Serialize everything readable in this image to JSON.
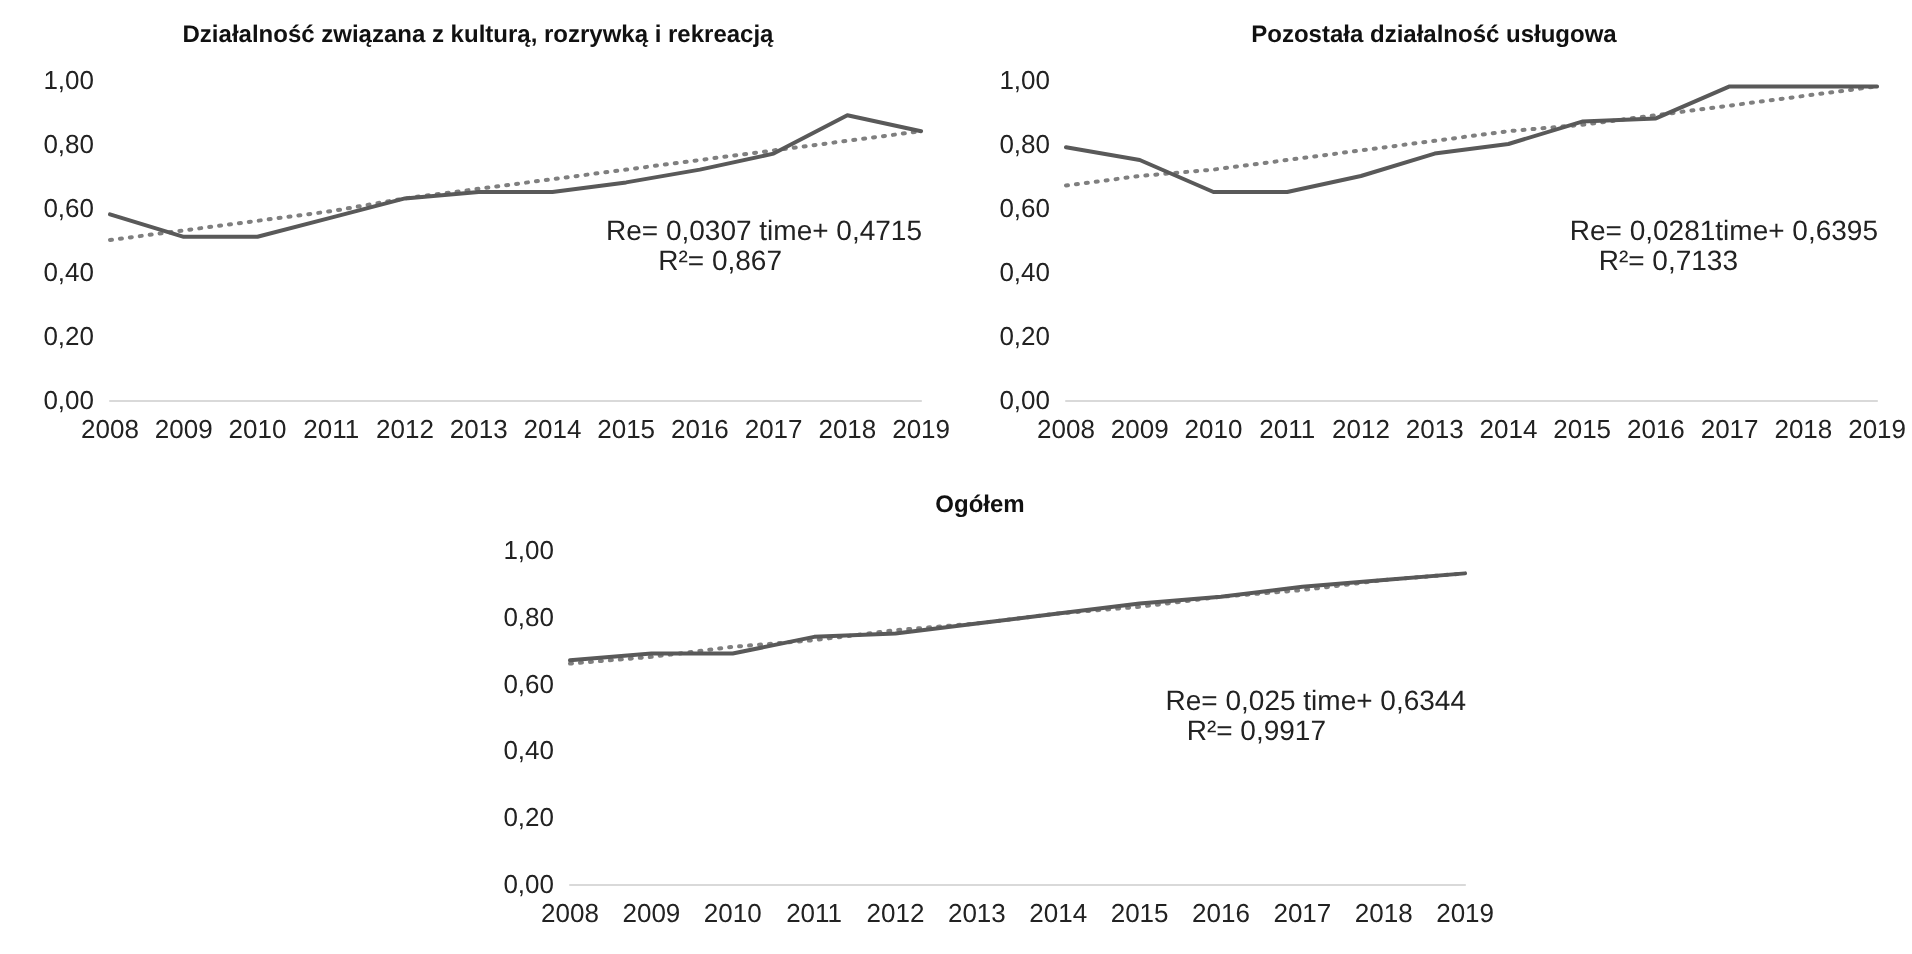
{
  "chart_data": [
    {
      "type": "line",
      "title": "Działalność związana z kulturą, rozrywką i rekreacją",
      "categories": [
        "2008",
        "2009",
        "2010",
        "2011",
        "2012",
        "2013",
        "2014",
        "2015",
        "2016",
        "2017",
        "2018",
        "2019"
      ],
      "series": [
        {
          "color": "#595959",
          "line_style": "solid",
          "values": [
            0.58,
            0.51,
            0.51,
            0.57,
            0.63,
            0.65,
            0.65,
            0.68,
            0.72,
            0.77,
            0.89,
            0.84
          ]
        },
        {
          "color": "#7f7f7f",
          "line_style": "dotted",
          "values": [
            0.5,
            0.53,
            0.56,
            0.59,
            0.63,
            0.66,
            0.69,
            0.72,
            0.75,
            0.78,
            0.81,
            0.84
          ]
        }
      ],
      "ylim": [
        0,
        1
      ],
      "yticks": [
        {
          "value": 0,
          "label": "0,00"
        },
        {
          "value": 0.2,
          "label": "0,20"
        },
        {
          "value": 0.4,
          "label": "0,40"
        },
        {
          "value": 0.6,
          "label": "0,60"
        },
        {
          "value": 0.8,
          "label": "0,80"
        },
        {
          "value": 1,
          "label": "1,00"
        }
      ],
      "annotations": [
        "Re= 0,0307 time+ 0,4715",
        "R²= 0,867"
      ],
      "grid": false,
      "marker": "none"
    },
    {
      "type": "line",
      "title": "Pozostała działalność usługowa",
      "categories": [
        "2008",
        "2009",
        "2010",
        "2011",
        "2012",
        "2013",
        "2014",
        "2015",
        "2016",
        "2017",
        "2018",
        "2019"
      ],
      "series": [
        {
          "color": "#595959",
          "line_style": "solid",
          "values": [
            0.79,
            0.75,
            0.65,
            0.65,
            0.7,
            0.77,
            0.8,
            0.87,
            0.88,
            0.98,
            0.98,
            0.98
          ]
        },
        {
          "color": "#7f7f7f",
          "line_style": "dotted",
          "values": [
            0.67,
            0.7,
            0.72,
            0.75,
            0.78,
            0.81,
            0.84,
            0.86,
            0.89,
            0.92,
            0.95,
            0.98
          ]
        }
      ],
      "ylim": [
        0,
        1
      ],
      "yticks": [
        {
          "value": 0,
          "label": "0,00"
        },
        {
          "value": 0.2,
          "label": "0,20"
        },
        {
          "value": 0.4,
          "label": "0,40"
        },
        {
          "value": 0.6,
          "label": "0,60"
        },
        {
          "value": 0.8,
          "label": "0,80"
        },
        {
          "value": 1,
          "label": "1,00"
        }
      ],
      "annotations": [
        "Re= 0,0281time+ 0,6395",
        "R²= 0,7133"
      ],
      "grid": false,
      "marker": "none"
    },
    {
      "type": "line",
      "title": "Ogółem",
      "categories": [
        "2008",
        "2009",
        "2010",
        "2011",
        "2012",
        "2013",
        "2014",
        "2015",
        "2016",
        "2017",
        "2018",
        "2019"
      ],
      "series": [
        {
          "color": "#595959",
          "line_style": "solid",
          "values": [
            0.67,
            0.69,
            0.69,
            0.74,
            0.75,
            0.78,
            0.81,
            0.84,
            0.86,
            0.89,
            0.91,
            0.93
          ]
        },
        {
          "color": "#7f7f7f",
          "line_style": "dotted",
          "values": [
            0.66,
            0.68,
            0.71,
            0.73,
            0.76,
            0.78,
            0.81,
            0.83,
            0.86,
            0.88,
            0.91,
            0.93
          ]
        }
      ],
      "ylim": [
        0,
        1
      ],
      "yticks": [
        {
          "value": 0,
          "label": "0,00"
        },
        {
          "value": 0.2,
          "label": "0,20"
        },
        {
          "value": 0.4,
          "label": "0,40"
        },
        {
          "value": 0.6,
          "label": "0,60"
        },
        {
          "value": 0.8,
          "label": "0,80"
        },
        {
          "value": 1,
          "label": "1,00"
        }
      ],
      "annotations": [
        "Re= 0,025 time+ 0,6344",
        "R²= 0,9917"
      ],
      "grid": false,
      "marker": "none"
    }
  ]
}
